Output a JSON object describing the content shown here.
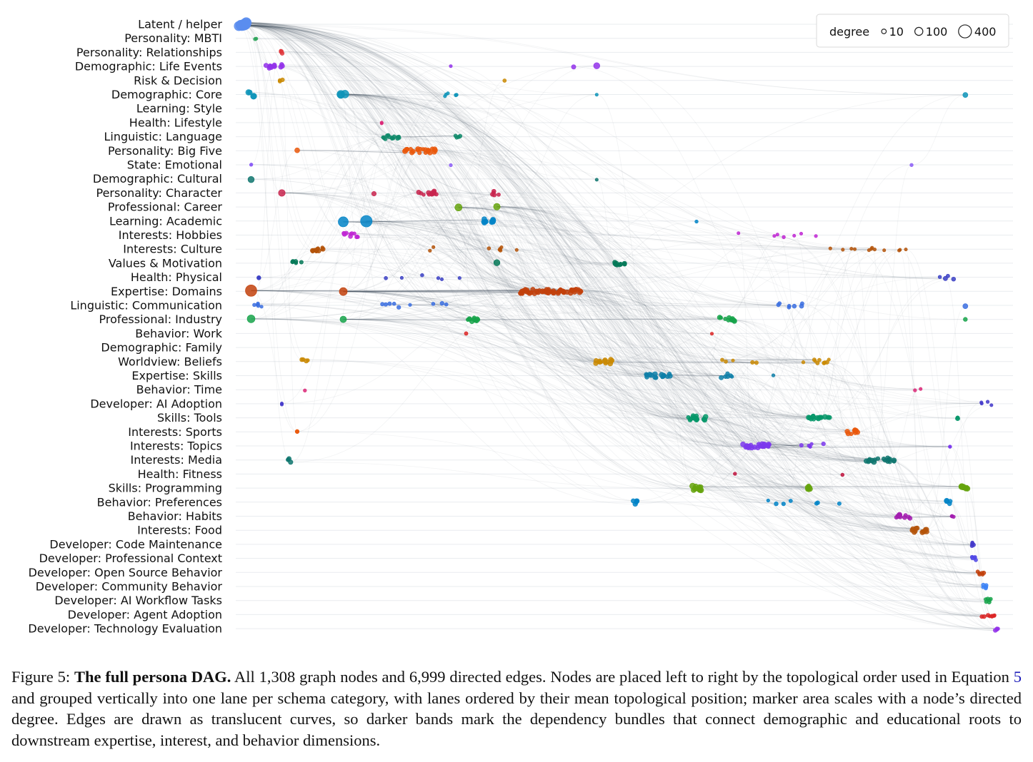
{
  "chart_data": {
    "type": "scatter",
    "x_axis": "topological order",
    "lanes": [
      "Latent / helper",
      "Personality: MBTI",
      "Personality: Relationships",
      "Demographic: Life Events",
      "Risk & Decision",
      "Demographic: Core",
      "Learning: Style",
      "Health: Lifestyle",
      "Linguistic: Language",
      "Personality: Big Five",
      "State: Emotional",
      "Demographic: Cultural",
      "Personality: Character",
      "Professional: Career",
      "Learning: Academic",
      "Interests: Hobbies",
      "Interests: Culture",
      "Values & Motivation",
      "Health: Physical",
      "Expertise: Domains",
      "Linguistic: Communication",
      "Professional: Industry",
      "Behavior: Work",
      "Demographic: Family",
      "Worldview: Beliefs",
      "Expertise: Skills",
      "Behavior: Time",
      "Developer: AI Adoption",
      "Skills: Tools",
      "Interests: Sports",
      "Interests: Topics",
      "Interests: Media",
      "Health: Fitness",
      "Skills: Programming",
      "Behavior: Preferences",
      "Behavior: Habits",
      "Interests: Food",
      "Developer: Code Maintenance",
      "Developer: Professional Context",
      "Developer: Open Source Behavior",
      "Developer: Community Behavior",
      "Developer: AI Workflow Tasks",
      "Developer: Agent Adoption",
      "Developer: Technology Evaluation"
    ],
    "lane_colors": [
      "#5b8def",
      "#2ea55a",
      "#e0393e",
      "#9333ea",
      "#ca8a04",
      "#0e94b8",
      "#4f46e5",
      "#db2777",
      "#0f8a6a",
      "#ea580c",
      "#8b5cf6",
      "#0f766e",
      "#c8254e",
      "#65a30d",
      "#0284c7",
      "#c026d3",
      "#b45309",
      "#047857",
      "#3b3fc4",
      "#c2410c",
      "#3b6fe0",
      "#16a34a",
      "#dc2626",
      "#7c3aed",
      "#ca8a04",
      "#0e7fa8",
      "#db2777",
      "#4338ca",
      "#059669",
      "#ea580c",
      "#7c3aed",
      "#0f766e",
      "#be123c",
      "#65a30d",
      "#0284c7",
      "#a21caf",
      "#b45309",
      "#4338ca",
      "#4f46e5",
      "#c2410c",
      "#3b82f6",
      "#16a34a",
      "#dc2626",
      "#9333ea"
    ],
    "x_range": [
      0,
      1
    ],
    "legend": {
      "title": "degree",
      "entries": [
        {
          "label": "10",
          "degree": 10
        },
        {
          "label": "100",
          "degree": 100
        },
        {
          "label": "400",
          "degree": 400
        }
      ],
      "placement": "top-right"
    },
    "node_count": 1308,
    "edge_count": 6999,
    "grid": true,
    "title": "",
    "xlabel": "",
    "ylabel": "",
    "clusters": [
      {
        "lane": 0,
        "x": 0.01,
        "spread": 0.006,
        "n": 8,
        "degree": 60
      },
      {
        "lane": 1,
        "x": 0.025,
        "spread": 0.002,
        "n": 2,
        "degree": 6
      },
      {
        "lane": 2,
        "x": 0.06,
        "spread": 0.004,
        "n": 4,
        "degree": 8
      },
      {
        "lane": 3,
        "x": 0.05,
        "spread": 0.012,
        "n": 12,
        "degree": 12
      },
      {
        "lane": 3,
        "x": 0.28,
        "spread": 0.0,
        "n": 1,
        "degree": 6
      },
      {
        "lane": 3,
        "x": 0.44,
        "spread": 0.0,
        "n": 1,
        "degree": 10
      },
      {
        "lane": 3,
        "x": 0.47,
        "spread": 0.0,
        "n": 1,
        "degree": 20
      },
      {
        "lane": 4,
        "x": 0.06,
        "spread": 0.003,
        "n": 3,
        "degree": 10
      },
      {
        "lane": 4,
        "x": 0.35,
        "spread": 0.0,
        "n": 1,
        "degree": 10
      },
      {
        "lane": 5,
        "x": 0.02,
        "spread": 0.004,
        "n": 4,
        "degree": 18
      },
      {
        "lane": 5,
        "x": 0.14,
        "spread": 0.006,
        "n": 3,
        "degree": 30
      },
      {
        "lane": 5,
        "x": 0.28,
        "spread": 0.008,
        "n": 5,
        "degree": 6
      },
      {
        "lane": 5,
        "x": 0.47,
        "spread": 0.0,
        "n": 1,
        "degree": 6
      },
      {
        "lane": 5,
        "x": 0.95,
        "spread": 0.0,
        "n": 1,
        "degree": 14
      },
      {
        "lane": 7,
        "x": 0.19,
        "spread": 0.0,
        "n": 2,
        "degree": 6
      },
      {
        "lane": 8,
        "x": 0.2,
        "spread": 0.014,
        "n": 14,
        "degree": 8
      },
      {
        "lane": 8,
        "x": 0.29,
        "spread": 0.004,
        "n": 4,
        "degree": 8
      },
      {
        "lane": 9,
        "x": 0.08,
        "spread": 0.0,
        "n": 1,
        "degree": 14
      },
      {
        "lane": 9,
        "x": 0.24,
        "spread": 0.02,
        "n": 22,
        "degree": 12
      },
      {
        "lane": 10,
        "x": 0.02,
        "spread": 0.002,
        "n": 2,
        "degree": 6
      },
      {
        "lane": 10,
        "x": 0.28,
        "spread": 0.0,
        "n": 1,
        "degree": 6
      },
      {
        "lane": 10,
        "x": 0.88,
        "spread": 0.0,
        "n": 1,
        "degree": 6
      },
      {
        "lane": 11,
        "x": 0.02,
        "spread": 0.0,
        "n": 1,
        "degree": 20
      },
      {
        "lane": 11,
        "x": 0.47,
        "spread": 0.0,
        "n": 1,
        "degree": 6
      },
      {
        "lane": 12,
        "x": 0.06,
        "spread": 0.0,
        "n": 1,
        "degree": 22
      },
      {
        "lane": 12,
        "x": 0.18,
        "spread": 0.0,
        "n": 1,
        "degree": 14
      },
      {
        "lane": 12,
        "x": 0.25,
        "spread": 0.014,
        "n": 12,
        "degree": 10
      },
      {
        "lane": 12,
        "x": 0.34,
        "spread": 0.006,
        "n": 5,
        "degree": 10
      },
      {
        "lane": 13,
        "x": 0.29,
        "spread": 0.0,
        "n": 1,
        "degree": 40
      },
      {
        "lane": 13,
        "x": 0.34,
        "spread": 0.0,
        "n": 1,
        "degree": 24
      },
      {
        "lane": 14,
        "x": 0.14,
        "spread": 0.0,
        "n": 1,
        "degree": 60
      },
      {
        "lane": 14,
        "x": 0.17,
        "spread": 0.0,
        "n": 1,
        "degree": 70
      },
      {
        "lane": 14,
        "x": 0.33,
        "spread": 0.008,
        "n": 9,
        "degree": 14
      },
      {
        "lane": 14,
        "x": 0.6,
        "spread": 0.0,
        "n": 1,
        "degree": 6
      },
      {
        "lane": 15,
        "x": 0.15,
        "spread": 0.01,
        "n": 10,
        "degree": 10
      },
      {
        "lane": 15,
        "x": 0.7,
        "spread": 0.06,
        "n": 7,
        "degree": 6
      },
      {
        "lane": 16,
        "x": 0.11,
        "spread": 0.01,
        "n": 12,
        "degree": 10
      },
      {
        "lane": 16,
        "x": 0.3,
        "spread": 0.07,
        "n": 8,
        "degree": 6
      },
      {
        "lane": 16,
        "x": 0.82,
        "spread": 0.06,
        "n": 12,
        "degree": 6
      },
      {
        "lane": 17,
        "x": 0.08,
        "spread": 0.008,
        "n": 5,
        "degree": 10
      },
      {
        "lane": 17,
        "x": 0.34,
        "spread": 0.0,
        "n": 1,
        "degree": 22
      },
      {
        "lane": 17,
        "x": 0.5,
        "spread": 0.008,
        "n": 9,
        "degree": 10
      },
      {
        "lane": 18,
        "x": 0.03,
        "spread": 0.0,
        "n": 2,
        "degree": 10
      },
      {
        "lane": 18,
        "x": 0.25,
        "spread": 0.06,
        "n": 6,
        "degree": 6
      },
      {
        "lane": 18,
        "x": 0.92,
        "spread": 0.03,
        "n": 4,
        "degree": 10
      },
      {
        "lane": 19,
        "x": 0.02,
        "spread": 0.0,
        "n": 1,
        "degree": 90
      },
      {
        "lane": 19,
        "x": 0.14,
        "spread": 0.0,
        "n": 1,
        "degree": 40
      },
      {
        "lane": 19,
        "x": 0.41,
        "spread": 0.04,
        "n": 55,
        "degree": 12
      },
      {
        "lane": 20,
        "x": 0.03,
        "spread": 0.006,
        "n": 5,
        "degree": 8
      },
      {
        "lane": 20,
        "x": 0.25,
        "spread": 0.06,
        "n": 9,
        "degree": 8
      },
      {
        "lane": 20,
        "x": 0.72,
        "spread": 0.02,
        "n": 7,
        "degree": 10
      },
      {
        "lane": 20,
        "x": 0.95,
        "spread": 0.0,
        "n": 1,
        "degree": 14
      },
      {
        "lane": 21,
        "x": 0.02,
        "spread": 0.0,
        "n": 1,
        "degree": 40
      },
      {
        "lane": 21,
        "x": 0.14,
        "spread": 0.0,
        "n": 1,
        "degree": 30
      },
      {
        "lane": 21,
        "x": 0.31,
        "spread": 0.008,
        "n": 10,
        "degree": 12
      },
      {
        "lane": 21,
        "x": 0.64,
        "spread": 0.01,
        "n": 10,
        "degree": 12
      },
      {
        "lane": 21,
        "x": 0.95,
        "spread": 0.0,
        "n": 1,
        "degree": 10
      },
      {
        "lane": 22,
        "x": 0.3,
        "spread": 0.0,
        "n": 1,
        "degree": 8
      },
      {
        "lane": 22,
        "x": 0.62,
        "spread": 0.0,
        "n": 1,
        "degree": 6
      },
      {
        "lane": 24,
        "x": 0.09,
        "spread": 0.004,
        "n": 4,
        "degree": 10
      },
      {
        "lane": 24,
        "x": 0.48,
        "spread": 0.012,
        "n": 14,
        "degree": 12
      },
      {
        "lane": 24,
        "x": 0.7,
        "spread": 0.08,
        "n": 14,
        "degree": 8
      },
      {
        "lane": 25,
        "x": 0.55,
        "spread": 0.016,
        "n": 18,
        "degree": 12
      },
      {
        "lane": 25,
        "x": 0.64,
        "spread": 0.008,
        "n": 6,
        "degree": 10
      },
      {
        "lane": 25,
        "x": 0.7,
        "spread": 0.0,
        "n": 1,
        "degree": 6
      },
      {
        "lane": 26,
        "x": 0.09,
        "spread": 0.0,
        "n": 1,
        "degree": 6
      },
      {
        "lane": 26,
        "x": 0.87,
        "spread": 0.03,
        "n": 2,
        "degree": 6
      },
      {
        "lane": 27,
        "x": 0.06,
        "spread": 0.0,
        "n": 2,
        "degree": 6
      },
      {
        "lane": 27,
        "x": 0.98,
        "spread": 0.01,
        "n": 4,
        "degree": 6
      },
      {
        "lane": 28,
        "x": 0.6,
        "spread": 0.012,
        "n": 14,
        "degree": 12
      },
      {
        "lane": 28,
        "x": 0.76,
        "spread": 0.014,
        "n": 14,
        "degree": 12
      },
      {
        "lane": 28,
        "x": 0.94,
        "spread": 0.0,
        "n": 2,
        "degree": 10
      },
      {
        "lane": 29,
        "x": 0.08,
        "spread": 0.0,
        "n": 2,
        "degree": 8
      },
      {
        "lane": 29,
        "x": 0.8,
        "spread": 0.01,
        "n": 8,
        "degree": 12
      },
      {
        "lane": 30,
        "x": 0.68,
        "spread": 0.02,
        "n": 22,
        "degree": 12
      },
      {
        "lane": 30,
        "x": 0.75,
        "spread": 0.018,
        "n": 6,
        "degree": 8
      },
      {
        "lane": 30,
        "x": 0.93,
        "spread": 0.0,
        "n": 2,
        "degree": 6
      },
      {
        "lane": 31,
        "x": 0.07,
        "spread": 0.003,
        "n": 4,
        "degree": 10
      },
      {
        "lane": 31,
        "x": 0.84,
        "spread": 0.02,
        "n": 18,
        "degree": 12
      },
      {
        "lane": 32,
        "x": 0.65,
        "spread": 0.0,
        "n": 1,
        "degree": 6
      },
      {
        "lane": 32,
        "x": 0.79,
        "spread": 0.0,
        "n": 1,
        "degree": 6
      },
      {
        "lane": 33,
        "x": 0.6,
        "spread": 0.006,
        "n": 10,
        "degree": 16
      },
      {
        "lane": 33,
        "x": 0.75,
        "spread": 0.006,
        "n": 6,
        "degree": 14
      },
      {
        "lane": 33,
        "x": 0.95,
        "spread": 0.006,
        "n": 6,
        "degree": 20
      },
      {
        "lane": 34,
        "x": 0.52,
        "spread": 0.004,
        "n": 6,
        "degree": 12
      },
      {
        "lane": 34,
        "x": 0.74,
        "spread": 0.05,
        "n": 7,
        "degree": 8
      },
      {
        "lane": 34,
        "x": 0.93,
        "spread": 0.01,
        "n": 4,
        "degree": 14
      },
      {
        "lane": 35,
        "x": 0.87,
        "spread": 0.01,
        "n": 10,
        "degree": 12
      },
      {
        "lane": 35,
        "x": 0.93,
        "spread": 0.006,
        "n": 3,
        "degree": 8
      },
      {
        "lane": 36,
        "x": 0.89,
        "spread": 0.01,
        "n": 12,
        "degree": 12
      },
      {
        "lane": 37,
        "x": 0.96,
        "spread": 0.003,
        "n": 5,
        "degree": 8
      },
      {
        "lane": 38,
        "x": 0.96,
        "spread": 0.004,
        "n": 5,
        "degree": 8
      },
      {
        "lane": 39,
        "x": 0.97,
        "spread": 0.006,
        "n": 6,
        "degree": 8
      },
      {
        "lane": 40,
        "x": 0.975,
        "spread": 0.004,
        "n": 5,
        "degree": 8
      },
      {
        "lane": 41,
        "x": 0.98,
        "spread": 0.004,
        "n": 6,
        "degree": 8
      },
      {
        "lane": 42,
        "x": 0.98,
        "spread": 0.01,
        "n": 8,
        "degree": 8
      },
      {
        "lane": 43,
        "x": 0.99,
        "spread": 0.003,
        "n": 4,
        "degree": 10
      }
    ]
  },
  "caption": {
    "label": "Figure 5:",
    "title": "The full persona DAG.",
    "text_before_ref": "All 1,308 graph nodes and 6,999 directed edges. Nodes are placed left to right by the topological order used in Equation",
    "ref": "5",
    "text_after_ref": "and grouped vertically into one lane per schema category, with lanes ordered by their mean topological position; marker area scales with a node’s directed degree. Edges are drawn as translucent curves, so darker bands mark the dependency bundles that connect demographic and educational roots to downstream expertise, interest, and behavior dimensions."
  }
}
